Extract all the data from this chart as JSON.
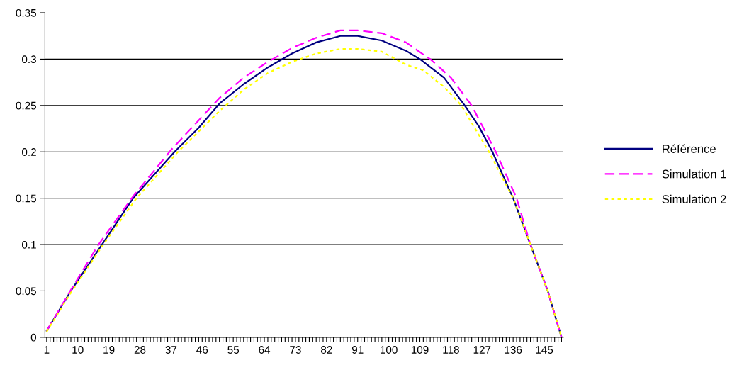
{
  "chart_data": {
    "type": "line",
    "xlim": [
      0.5,
      150.5
    ],
    "xticks": [
      1,
      {
        "value": 2,
        "label": null
      },
      {
        "value": 3,
        "label": null
      },
      {
        "value": 4,
        "label": null
      },
      {
        "value": 5,
        "label": null
      },
      {
        "value": 6,
        "label": null
      },
      {
        "value": 7,
        "label": null
      },
      {
        "value": 8,
        "label": null
      },
      {
        "value": 9,
        "label": null
      },
      10,
      {
        "value": 11,
        "label": null
      },
      {
        "value": 12,
        "label": null
      },
      {
        "value": 13,
        "label": null
      },
      {
        "value": 14,
        "label": null
      },
      {
        "value": 15,
        "label": null
      },
      {
        "value": 16,
        "label": null
      },
      {
        "value": 17,
        "label": null
      },
      {
        "value": 18,
        "label": null
      },
      19,
      {
        "value": 20,
        "label": null
      },
      {
        "value": 21,
        "label": null
      },
      {
        "value": 22,
        "label": null
      },
      {
        "value": 23,
        "label": null
      },
      {
        "value": 24,
        "label": null
      },
      {
        "value": 25,
        "label": null
      },
      {
        "value": 26,
        "label": null
      },
      {
        "value": 27,
        "label": null
      },
      28,
      {
        "value": 29,
        "label": null
      },
      {
        "value": 30,
        "label": null
      },
      {
        "value": 31,
        "label": null
      },
      {
        "value": 32,
        "label": null
      },
      {
        "value": 33,
        "label": null
      },
      {
        "value": 34,
        "label": null
      },
      {
        "value": 35,
        "label": null
      },
      {
        "value": 36,
        "label": null
      },
      37,
      {
        "value": 38,
        "label": null
      },
      {
        "value": 39,
        "label": null
      },
      {
        "value": 40,
        "label": null
      },
      {
        "value": 41,
        "label": null
      },
      {
        "value": 42,
        "label": null
      },
      {
        "value": 43,
        "label": null
      },
      {
        "value": 44,
        "label": null
      },
      {
        "value": 45,
        "label": null
      },
      46,
      {
        "value": 47,
        "label": null
      },
      {
        "value": 48,
        "label": null
      },
      {
        "value": 49,
        "label": null
      },
      {
        "value": 50,
        "label": null
      },
      {
        "value": 51,
        "label": null
      },
      {
        "value": 52,
        "label": null
      },
      {
        "value": 53,
        "label": null
      },
      {
        "value": 54,
        "label": null
      },
      55,
      {
        "value": 56,
        "label": null
      },
      {
        "value": 57,
        "label": null
      },
      {
        "value": 58,
        "label": null
      },
      {
        "value": 59,
        "label": null
      },
      {
        "value": 60,
        "label": null
      },
      {
        "value": 61,
        "label": null
      },
      {
        "value": 62,
        "label": null
      },
      {
        "value": 63,
        "label": null
      },
      64,
      {
        "value": 65,
        "label": null
      },
      {
        "value": 66,
        "label": null
      },
      {
        "value": 67,
        "label": null
      },
      {
        "value": 68,
        "label": null
      },
      {
        "value": 69,
        "label": null
      },
      {
        "value": 70,
        "label": null
      },
      {
        "value": 71,
        "label": null
      },
      {
        "value": 72,
        "label": null
      },
      73,
      {
        "value": 74,
        "label": null
      },
      {
        "value": 75,
        "label": null
      },
      {
        "value": 76,
        "label": null
      },
      {
        "value": 77,
        "label": null
      },
      {
        "value": 78,
        "label": null
      },
      {
        "value": 79,
        "label": null
      },
      {
        "value": 80,
        "label": null
      },
      {
        "value": 81,
        "label": null
      },
      82,
      {
        "value": 83,
        "label": null
      },
      {
        "value": 84,
        "label": null
      },
      {
        "value": 85,
        "label": null
      },
      {
        "value": 86,
        "label": null
      },
      {
        "value": 87,
        "label": null
      },
      {
        "value": 88,
        "label": null
      },
      {
        "value": 89,
        "label": null
      },
      {
        "value": 90,
        "label": null
      },
      91,
      {
        "value": 92,
        "label": null
      },
      {
        "value": 93,
        "label": null
      },
      {
        "value": 94,
        "label": null
      },
      {
        "value": 95,
        "label": null
      },
      {
        "value": 96,
        "label": null
      },
      {
        "value": 97,
        "label": null
      },
      {
        "value": 98,
        "label": null
      },
      {
        "value": 99,
        "label": null
      },
      100,
      {
        "value": 101,
        "label": null
      },
      {
        "value": 102,
        "label": null
      },
      {
        "value": 103,
        "label": null
      },
      {
        "value": 104,
        "label": null
      },
      {
        "value": 105,
        "label": null
      },
      {
        "value": 106,
        "label": null
      },
      {
        "value": 107,
        "label": null
      },
      {
        "value": 108,
        "label": null
      },
      109,
      {
        "value": 110,
        "label": null
      },
      {
        "value": 111,
        "label": null
      },
      {
        "value": 112,
        "label": null
      },
      {
        "value": 113,
        "label": null
      },
      {
        "value": 114,
        "label": null
      },
      {
        "value": 115,
        "label": null
      },
      {
        "value": 116,
        "label": null
      },
      {
        "value": 117,
        "label": null
      },
      118,
      {
        "value": 119,
        "label": null
      },
      {
        "value": 120,
        "label": null
      },
      {
        "value": 121,
        "label": null
      },
      {
        "value": 122,
        "label": null
      },
      {
        "value": 123,
        "label": null
      },
      {
        "value": 124,
        "label": null
      },
      {
        "value": 125,
        "label": null
      },
      {
        "value": 126,
        "label": null
      },
      127,
      {
        "value": 128,
        "label": null
      },
      {
        "value": 129,
        "label": null
      },
      {
        "value": 130,
        "label": null
      },
      {
        "value": 131,
        "label": null
      },
      {
        "value": 132,
        "label": null
      },
      {
        "value": 133,
        "label": null
      },
      {
        "value": 134,
        "label": null
      },
      {
        "value": 135,
        "label": null
      },
      136,
      {
        "value": 137,
        "label": null
      },
      {
        "value": 138,
        "label": null
      },
      {
        "value": 139,
        "label": null
      },
      {
        "value": 140,
        "label": null
      },
      {
        "value": 141,
        "label": null
      },
      {
        "value": 142,
        "label": null
      },
      {
        "value": 143,
        "label": null
      },
      {
        "value": 144,
        "label": null
      },
      145,
      {
        "value": 146,
        "label": null
      },
      {
        "value": 147,
        "label": null
      },
      {
        "value": 148,
        "label": null
      },
      {
        "value": 149,
        "label": null
      },
      {
        "value": 150,
        "label": null
      }
    ],
    "ylim": [
      0,
      0.35
    ],
    "yticks": [
      0,
      0.05,
      0.1,
      0.15,
      0.2,
      0.25,
      0.3,
      0.35
    ],
    "grid": "y",
    "legend": "right",
    "marker": "none",
    "series": [
      {
        "name": "Référence",
        "color": "#000080",
        "line_style": "solid",
        "x": [
          1,
          8,
          17,
          26,
          38,
          45,
          51,
          58,
          65,
          72,
          79,
          86,
          91,
          98,
          105,
          109,
          116,
          122,
          126,
          130,
          133,
          136,
          141,
          146,
          150
        ],
        "values": [
          0.007,
          0.05,
          0.1,
          0.15,
          0.2,
          0.226,
          0.252,
          0.273,
          0.291,
          0.306,
          0.318,
          0.325,
          0.325,
          0.32,
          0.309,
          0.3,
          0.28,
          0.25,
          0.228,
          0.2,
          0.175,
          0.15,
          0.1,
          0.05,
          0
        ]
      },
      {
        "name": "Simulation 1",
        "color": "#ff00ff",
        "line_style": "dashed",
        "x": [
          1,
          8,
          16,
          26,
          37,
          45,
          51,
          58,
          65,
          72,
          79,
          86,
          91,
          98,
          105,
          110,
          112,
          118,
          124,
          131,
          137,
          141,
          146,
          150
        ],
        "values": [
          0.007,
          0.051,
          0.1,
          0.152,
          0.202,
          0.234,
          0.258,
          0.28,
          0.297,
          0.312,
          0.323,
          0.331,
          0.331,
          0.328,
          0.318,
          0.305,
          0.3,
          0.28,
          0.25,
          0.2,
          0.15,
          0.1,
          0.05,
          0
        ]
      },
      {
        "name": "Simulation 2",
        "color": "#ffff00",
        "line_style": "dotted",
        "x": [
          1,
          8,
          17,
          27,
          39,
          45,
          51,
          58,
          65,
          72,
          79,
          86,
          91,
          98,
          102,
          105,
          110,
          116,
          121,
          129,
          136,
          141,
          146,
          150
        ],
        "values": [
          0.006,
          0.048,
          0.098,
          0.15,
          0.2,
          0.222,
          0.244,
          0.267,
          0.285,
          0.297,
          0.306,
          0.311,
          0.311,
          0.308,
          0.3,
          0.294,
          0.288,
          0.27,
          0.25,
          0.2,
          0.15,
          0.1,
          0.05,
          0
        ]
      }
    ]
  }
}
